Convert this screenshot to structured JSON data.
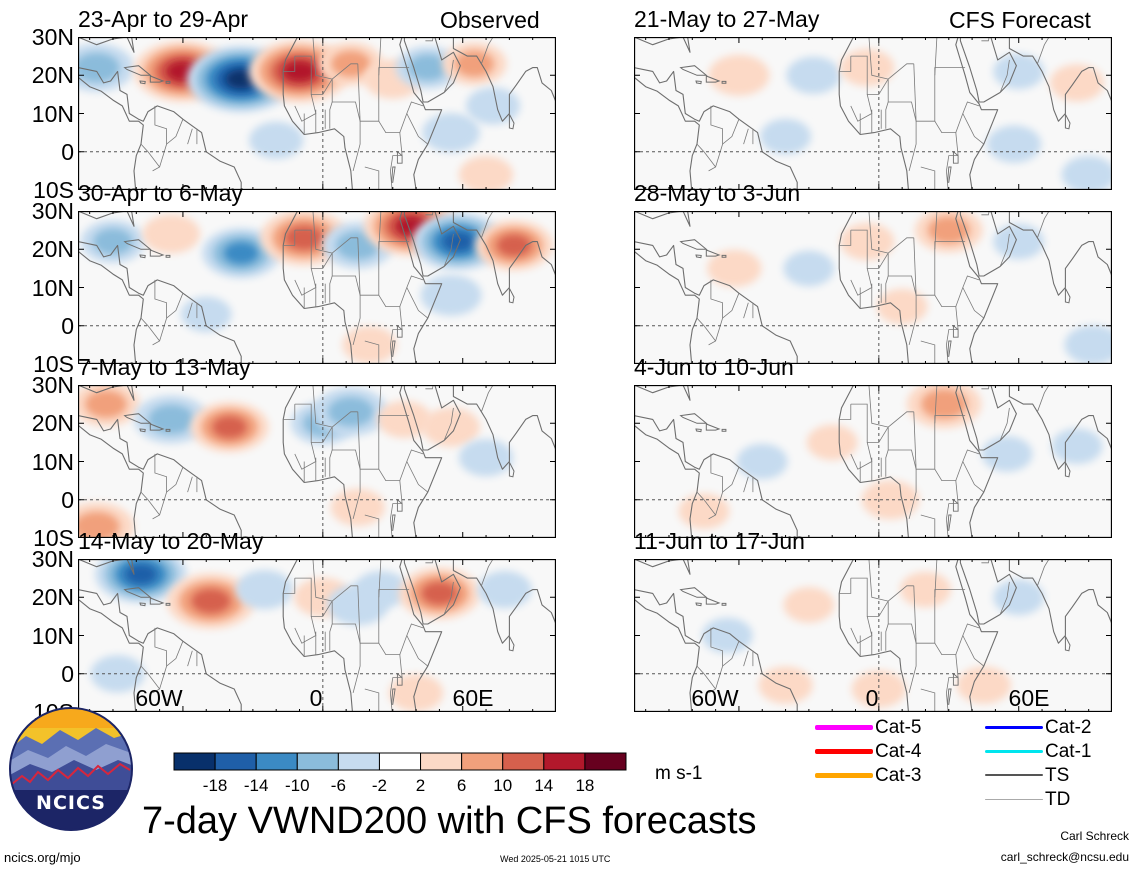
{
  "observed_label": "Observed",
  "forecast_label": "CFS Forecast",
  "latitude_labels": [
    "30N",
    "20N",
    "10N",
    "0",
    "10S"
  ],
  "longitude_labels": [
    "60W",
    "0",
    "60E"
  ],
  "panels": [
    {
      "title": "23-Apr to 29-Apr",
      "kind": "observed",
      "anomalies": [
        {
          "lon": -97,
          "lat": 22,
          "value": -9
        },
        {
          "lon": -60,
          "lat": 21,
          "value": 16
        },
        {
          "lon": -35,
          "lat": 19,
          "value": -19
        },
        {
          "lon": -10,
          "lat": 21,
          "value": 17
        },
        {
          "lon": 12,
          "lat": 23,
          "value": 6
        },
        {
          "lon": 30,
          "lat": 19,
          "value": 4
        },
        {
          "lon": 45,
          "lat": 22,
          "value": -6
        },
        {
          "lon": 65,
          "lat": 23,
          "value": 6
        },
        {
          "lon": 55,
          "lat": 5,
          "value": -4
        },
        {
          "lon": 73,
          "lat": 12,
          "value": -3
        },
        {
          "lon": -20,
          "lat": 3,
          "value": -3
        },
        {
          "lon": 70,
          "lat": -6,
          "value": 3
        }
      ]
    },
    {
      "title": "30-Apr to 6-May",
      "kind": "observed",
      "anomalies": [
        {
          "lon": -90,
          "lat": 22,
          "value": -6
        },
        {
          "lon": -65,
          "lat": 24,
          "value": 4
        },
        {
          "lon": -35,
          "lat": 19,
          "value": -10
        },
        {
          "lon": -8,
          "lat": 23,
          "value": 13
        },
        {
          "lon": 15,
          "lat": 21,
          "value": -8
        },
        {
          "lon": 38,
          "lat": 26,
          "value": 15
        },
        {
          "lon": 58,
          "lat": 22,
          "value": -14
        },
        {
          "lon": 82,
          "lat": 21,
          "value": 10
        },
        {
          "lon": 55,
          "lat": 8,
          "value": -5
        },
        {
          "lon": -50,
          "lat": 3,
          "value": -2
        },
        {
          "lon": 20,
          "lat": -5,
          "value": 3
        }
      ]
    },
    {
      "title": "7-May to 13-May",
      "kind": "observed",
      "anomalies": [
        {
          "lon": -93,
          "lat": 25,
          "value": 7
        },
        {
          "lon": -65,
          "lat": 21,
          "value": -9
        },
        {
          "lon": -40,
          "lat": 19,
          "value": 10
        },
        {
          "lon": 0,
          "lat": 20,
          "value": -6
        },
        {
          "lon": 12,
          "lat": 23,
          "value": -9
        },
        {
          "lon": 35,
          "lat": 21,
          "value": 3
        },
        {
          "lon": 55,
          "lat": 19,
          "value": 4
        },
        {
          "lon": 70,
          "lat": 11,
          "value": -3
        },
        {
          "lon": -97,
          "lat": -7,
          "value": 9
        },
        {
          "lon": 15,
          "lat": -2,
          "value": 3
        }
      ]
    },
    {
      "title": "14-May to 20-May",
      "kind": "observed",
      "anomalies": [
        {
          "lon": -78,
          "lat": 26,
          "value": -14
        },
        {
          "lon": -48,
          "lat": 19,
          "value": 13
        },
        {
          "lon": -25,
          "lat": 22,
          "value": -4
        },
        {
          "lon": 0,
          "lat": 20,
          "value": 4
        },
        {
          "lon": 15,
          "lat": 18,
          "value": -5
        },
        {
          "lon": 25,
          "lat": 22,
          "value": -3
        },
        {
          "lon": 50,
          "lat": 21,
          "value": 11
        },
        {
          "lon": 78,
          "lat": 22,
          "value": -3
        },
        {
          "lon": -88,
          "lat": 0,
          "value": -3
        },
        {
          "lon": 40,
          "lat": -5,
          "value": 3
        }
      ]
    },
    {
      "title": "21-May to 27-May",
      "kind": "forecast",
      "anomalies": [
        {
          "lon": -60,
          "lat": 20,
          "value": 5
        },
        {
          "lon": -28,
          "lat": 20,
          "value": -3
        },
        {
          "lon": -5,
          "lat": 22,
          "value": 3
        },
        {
          "lon": 60,
          "lat": 21,
          "value": -2
        },
        {
          "lon": 85,
          "lat": 18,
          "value": 3
        },
        {
          "lon": 58,
          "lat": 2,
          "value": -3
        },
        {
          "lon": -40,
          "lat": 4,
          "value": -2
        },
        {
          "lon": 90,
          "lat": -6,
          "value": -3
        }
      ]
    },
    {
      "title": "28-May to 3-Jun",
      "kind": "forecast",
      "anomalies": [
        {
          "lon": -62,
          "lat": 15,
          "value": 3
        },
        {
          "lon": -30,
          "lat": 15,
          "value": -2
        },
        {
          "lon": -5,
          "lat": 22,
          "value": 3
        },
        {
          "lon": 30,
          "lat": 25,
          "value": 7
        },
        {
          "lon": 60,
          "lat": 22,
          "value": -2
        },
        {
          "lon": 10,
          "lat": 5,
          "value": 2
        },
        {
          "lon": 92,
          "lat": -5,
          "value": -4
        }
      ]
    },
    {
      "title": "4-Jun to 10-Jun",
      "kind": "forecast",
      "anomalies": [
        {
          "lon": -50,
          "lat": 10,
          "value": -2
        },
        {
          "lon": 28,
          "lat": 25,
          "value": 9
        },
        {
          "lon": -20,
          "lat": 15,
          "value": 2
        },
        {
          "lon": 5,
          "lat": 0,
          "value": 4
        },
        {
          "lon": -75,
          "lat": -3,
          "value": 2
        },
        {
          "lon": 55,
          "lat": 12,
          "value": -2
        },
        {
          "lon": 85,
          "lat": 14,
          "value": -2
        }
      ]
    },
    {
      "title": "11-Jun to 17-Jun",
      "kind": "forecast",
      "anomalies": [
        {
          "lon": -40,
          "lat": -3,
          "value": 3
        },
        {
          "lon": 0,
          "lat": -4,
          "value": 3
        },
        {
          "lon": 45,
          "lat": -3,
          "value": 3
        },
        {
          "lon": 20,
          "lat": 22,
          "value": 2
        },
        {
          "lon": -65,
          "lat": 10,
          "value": -2
        },
        {
          "lon": 60,
          "lat": 20,
          "value": -2
        },
        {
          "lon": -30,
          "lat": 18,
          "value": 2
        }
      ]
    }
  ],
  "colorbar": {
    "ticks": [
      "-18",
      "-14",
      "-10",
      "-6",
      "-2",
      "2",
      "6",
      "10",
      "14",
      "18"
    ],
    "colors": [
      "#08306b",
      "#1f5fa8",
      "#3b8ac4",
      "#8bbcdb",
      "#c6dbef",
      "#ffffff",
      "#fcd9c6",
      "#f1a07c",
      "#d6604d",
      "#b2182b",
      "#67001f"
    ],
    "units": "m s-1"
  },
  "storm_legend": [
    {
      "label": "Cat-5",
      "color": "#ff00ff"
    },
    {
      "label": "Cat-2",
      "color": "#0000ff"
    },
    {
      "label": "Cat-4",
      "color": "#ff0000"
    },
    {
      "label": "Cat-1",
      "color": "#00e5ee"
    },
    {
      "label": "Cat-3",
      "color": "#ffa500"
    },
    {
      "label": "TS",
      "color": "#555555"
    },
    {
      "label": "",
      "color": ""
    },
    {
      "label": "TD",
      "color": "#aaaaaa"
    }
  ],
  "logo_text": "NCICS",
  "main_title": "7-day VWND200 with CFS forecasts",
  "author": "Carl Schreck",
  "email": "carl_schreck@ncsu.edu",
  "site": "ncics.org/mjo",
  "timestamp": "Wed 2025-05-21 1015 UTC"
}
